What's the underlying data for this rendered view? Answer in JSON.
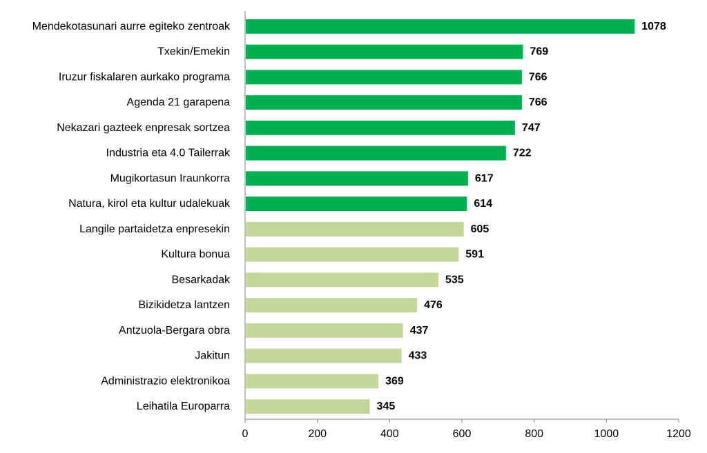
{
  "chart_data": {
    "type": "bar",
    "orientation": "horizontal",
    "title": "",
    "xlabel": "",
    "ylabel": "",
    "xlim": [
      0,
      1200
    ],
    "ticks": [
      "0",
      "200",
      "400",
      "600",
      "800",
      "1000",
      "1200"
    ],
    "grid": false,
    "colors": {
      "highlight": "#00b050",
      "normal": "#c4d79b"
    },
    "bars": [
      {
        "label": "Mendekotasunari aurre egiteko zentroak",
        "value": 1078,
        "value_label": "1078",
        "group": "highlight"
      },
      {
        "label": "Txekin/Emekin",
        "value": 769,
        "value_label": "769",
        "group": "highlight"
      },
      {
        "label": "Iruzur fiskalaren aurkako programa",
        "value": 766,
        "value_label": "766",
        "group": "highlight"
      },
      {
        "label": "Agenda 21 garapena",
        "value": 766,
        "value_label": "766",
        "group": "highlight"
      },
      {
        "label": "Nekazari gazteek enpresak sortzea",
        "value": 747,
        "value_label": "747",
        "group": "highlight"
      },
      {
        "label": "Industria eta 4.0 Tailerrak",
        "value": 722,
        "value_label": "722",
        "group": "highlight"
      },
      {
        "label": "Mugikortasun Iraunkorra",
        "value": 617,
        "value_label": "617",
        "group": "highlight"
      },
      {
        "label": "Natura, kirol eta kultur udalekuak",
        "value": 614,
        "value_label": "614",
        "group": "highlight"
      },
      {
        "label": "Langile partaidetza enpresekin",
        "value": 605,
        "value_label": "605",
        "group": "normal"
      },
      {
        "label": "Kultura bonua",
        "value": 591,
        "value_label": "591",
        "group": "normal"
      },
      {
        "label": "Besarkadak",
        "value": 535,
        "value_label": "535",
        "group": "normal"
      },
      {
        "label": "Bizikidetza lantzen",
        "value": 476,
        "value_label": "476",
        "group": "normal"
      },
      {
        "label": "Antzuola-Bergara obra",
        "value": 437,
        "value_label": "437",
        "group": "normal"
      },
      {
        "label": "Jakitun",
        "value": 433,
        "value_label": "433",
        "group": "normal"
      },
      {
        "label": "Administrazio elektronikoa",
        "value": 369,
        "value_label": "369",
        "group": "normal"
      },
      {
        "label": "Leihatila Europarra",
        "value": 345,
        "value_label": "345",
        "group": "normal"
      }
    ]
  }
}
